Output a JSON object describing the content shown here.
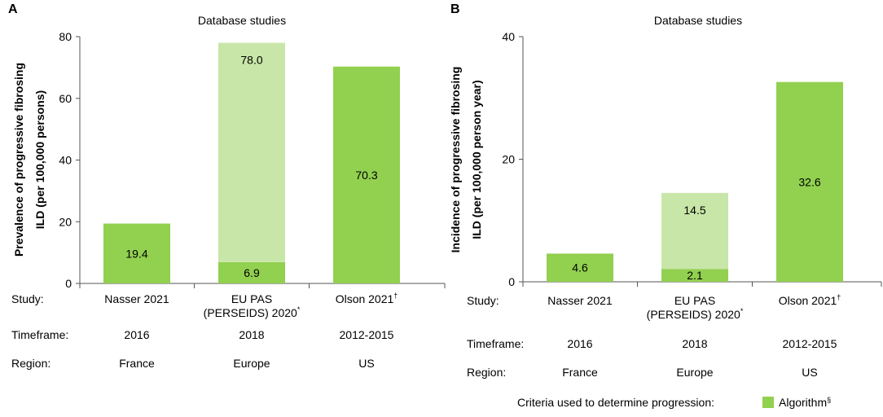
{
  "chart_data": [
    {
      "type": "bar",
      "panel": "A",
      "title": "Database studies",
      "ylabel_line1": "Prevalence of progressive fibrosing",
      "ylabel_line2": "ILD (per 100,000 persons)",
      "ylim": [
        0,
        80
      ],
      "yticks": [
        "0",
        "20",
        "40",
        "60",
        "80"
      ],
      "row_labels": {
        "study": "Study:",
        "timeframe": "Timeframe:",
        "region": "Region:"
      },
      "bars": [
        {
          "study": "Nasser 2021",
          "study_line2": "",
          "sup": "",
          "timeframe": "2016",
          "region": "France",
          "segments": [
            {
              "value": 19.4,
              "label": "19.4",
              "color": "#92d050"
            }
          ]
        },
        {
          "study": "EU PAS",
          "study_line2": "(PERSEIDS) 2020",
          "sup": "*",
          "timeframe": "2018",
          "region": "Europe",
          "segments": [
            {
              "value": 6.9,
              "label": "6.9",
              "color": "#92d050"
            },
            {
              "value": 78.0,
              "label": "78.0",
              "color": "#c8e6a8"
            }
          ]
        },
        {
          "study": "Olson 2021",
          "study_line2": "",
          "sup": "†",
          "timeframe": "2012-2015",
          "region": "US",
          "segments": [
            {
              "value": 70.3,
              "label": "70.3",
              "color": "#92d050"
            }
          ]
        }
      ]
    },
    {
      "type": "bar",
      "panel": "B",
      "title": "Database studies",
      "ylabel_line1": "Incidence of progressive fibrosing",
      "ylabel_line2": "ILD (per 100,000 person year)",
      "ylim": [
        0,
        40
      ],
      "yticks": [
        "0",
        "20",
        "40"
      ],
      "row_labels": {
        "study": "Study:",
        "timeframe": "Timeframe:",
        "region": "Region:"
      },
      "bars": [
        {
          "study": "Nasser 2021",
          "study_line2": "",
          "sup": "",
          "timeframe": "2016",
          "region": "France",
          "segments": [
            {
              "value": 4.6,
              "label": "4.6",
              "color": "#92d050"
            }
          ]
        },
        {
          "study": "EU PAS",
          "study_line2": "(PERSEIDS) 2020",
          "sup": "*",
          "timeframe": "2018",
          "region": "Europe",
          "segments": [
            {
              "value": 2.1,
              "label": "2.1",
              "color": "#92d050"
            },
            {
              "value": 14.5,
              "label": "14.5",
              "color": "#c8e6a8"
            }
          ]
        },
        {
          "study": "Olson 2021",
          "study_line2": "",
          "sup": "†",
          "timeframe": "2012-2015",
          "region": "US",
          "segments": [
            {
              "value": 32.6,
              "label": "32.6",
              "color": "#92d050"
            }
          ]
        }
      ]
    }
  ],
  "legend": {
    "caption": "Criteria used to determine progression:",
    "item_label": "Algorithm",
    "item_sup": "§",
    "item_color": "#92d050"
  }
}
